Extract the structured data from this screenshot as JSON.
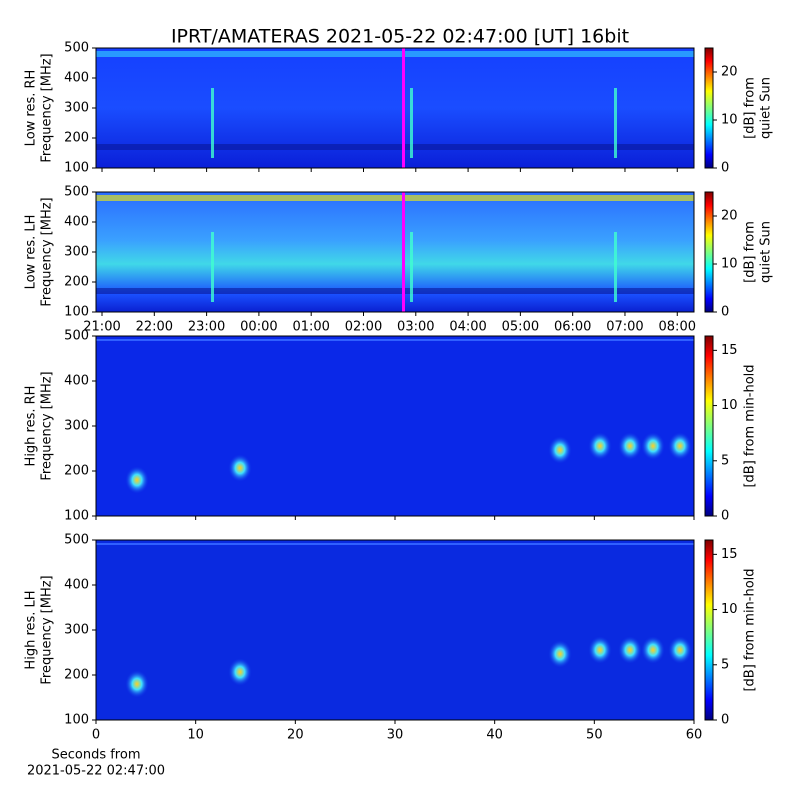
{
  "chart_data": [
    {
      "type": "heatmap",
      "title": "IPRT/AMATERAS 2021-05-22 02:47:00 [UT]   16bit",
      "ylabel": [
        "Low res. RH",
        "Frequency [MHz]"
      ],
      "ylim": [
        100,
        500
      ],
      "yticks": [
        100,
        200,
        300,
        400,
        500
      ],
      "xlim": [
        20.885,
        32.32
      ],
      "colorbar_label": [
        "[dB] from",
        "quiet Sun"
      ],
      "clim": [
        0,
        25
      ],
      "cticks": [
        0,
        10,
        20
      ]
    },
    {
      "type": "heatmap",
      "ylabel": [
        "Low res. LH",
        "Frequency [MHz]"
      ],
      "ylim": [
        100,
        500
      ],
      "yticks": [
        100,
        200,
        300,
        400,
        500
      ],
      "xlim": [
        20.885,
        32.32
      ],
      "xticks": [
        {
          "value": 21,
          "label": "21:00"
        },
        {
          "value": 22,
          "label": "22:00"
        },
        {
          "value": 23,
          "label": "23:00"
        },
        {
          "value": 24,
          "label": "00:00"
        },
        {
          "value": 25,
          "label": "01:00"
        },
        {
          "value": 26,
          "label": "02:00"
        },
        {
          "value": 27,
          "label": "03:00"
        },
        {
          "value": 28,
          "label": "04:00"
        },
        {
          "value": 29,
          "label": "05:00"
        },
        {
          "value": 30,
          "label": "06:00"
        },
        {
          "value": 31,
          "label": "07:00"
        },
        {
          "value": 32,
          "label": "08:00"
        }
      ],
      "colorbar_label": [
        "[dB] from",
        "quiet Sun"
      ],
      "clim": [
        0,
        25
      ],
      "cticks": [
        0,
        10,
        20
      ]
    },
    {
      "type": "heatmap",
      "ylabel": [
        "High res. RH",
        "Frequency [MHz]"
      ],
      "ylim": [
        100,
        500
      ],
      "yticks": [
        100,
        200,
        300,
        400,
        500
      ],
      "xlim": [
        0,
        60
      ],
      "colorbar_label": [
        "[dB] from min-hold"
      ],
      "clim": [
        0,
        16.3
      ],
      "cticks": [
        0,
        5,
        10,
        15
      ]
    },
    {
      "type": "heatmap",
      "ylabel": [
        "High res. LH",
        "Frequency [MHz]"
      ],
      "ylim": [
        100,
        500
      ],
      "yticks": [
        100,
        200,
        300,
        400,
        500
      ],
      "xlim": [
        0,
        60
      ],
      "xticks": [
        0,
        10,
        20,
        30,
        40,
        50,
        60
      ],
      "xlabel": [
        "Seconds from",
        "2021-05-22 02:47:00"
      ],
      "colorbar_label": [
        "[dB] from min-hold"
      ],
      "clim": [
        0,
        16.3
      ],
      "cticks": [
        0,
        5,
        10,
        15
      ]
    }
  ]
}
